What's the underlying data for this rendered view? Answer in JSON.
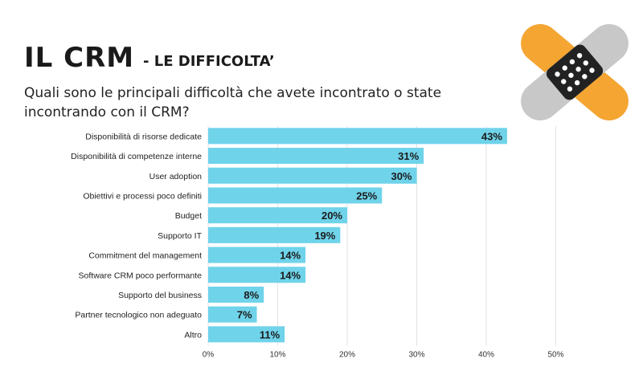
{
  "header": {
    "title": "IL CRM",
    "subtitle": "- LE DIFFICOLTA’",
    "question": "Quali sono le principali difficoltà che avete incontrato o state incontrando con il CRM?"
  },
  "logo": {
    "icon": "bandage-icon",
    "colors": {
      "orange": "#f4a532",
      "gray": "#c8c8c8",
      "dark": "#222222"
    }
  },
  "chart_data": {
    "type": "bar",
    "orientation": "horizontal",
    "categories": [
      "Disponibilità di risorse dedicate",
      "Disponibilità di competenze interne",
      "User adoption",
      "Obiettivi e processi poco definiti",
      "Budget",
      "Supporto IT",
      "Commitment del management",
      "Software CRM poco performante",
      "Supporto del business",
      "Partner tecnologico non adeguato",
      "Altro"
    ],
    "values": [
      43,
      31,
      30,
      25,
      20,
      19,
      14,
      14,
      8,
      7,
      11
    ],
    "value_labels": [
      "43%",
      "31%",
      "30%",
      "25%",
      "20%",
      "19%",
      "14%",
      "14%",
      "8%",
      "7%",
      "11%"
    ],
    "xlim": [
      0,
      50
    ],
    "xticks": [
      0,
      10,
      20,
      30,
      40,
      50
    ],
    "xtick_labels": [
      "0%",
      "10%",
      "20%",
      "30%",
      "40%",
      "50%"
    ],
    "bar_color": "#6fd3ea",
    "grid": "vertical"
  }
}
